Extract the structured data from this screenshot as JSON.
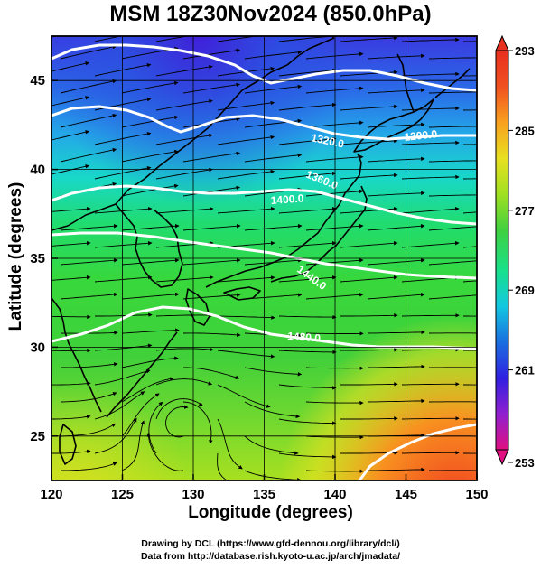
{
  "title": "MSM 18Z30Nov2024 (850.0hPa)",
  "x_axis": {
    "label": "Longitude (degrees)",
    "ticks": [
      "120",
      "125",
      "130",
      "135",
      "140",
      "145",
      "150"
    ],
    "range": [
      120,
      150
    ]
  },
  "y_axis": {
    "label": "Latitude  (degrees)",
    "ticks": [
      "25",
      "30",
      "35",
      "40",
      "45"
    ],
    "range": [
      22.5,
      47.5
    ]
  },
  "colorbar": {
    "ticks": [
      "293",
      "285",
      "277",
      "269",
      "261",
      "253"
    ],
    "range": [
      253,
      293
    ],
    "colors": [
      "#e01080",
      "#9020d0",
      "#3020e0",
      "#1a6fe0",
      "#12c8e0",
      "#18e08a",
      "#40d040",
      "#a0e020",
      "#e8e020",
      "#f8a020",
      "#f05020",
      "#e83020"
    ]
  },
  "contours": [
    {
      "label": "1200.0"
    },
    {
      "label": "1320.0"
    },
    {
      "label": "1360.0"
    },
    {
      "label": "1400.0"
    },
    {
      "label": "1440.0"
    },
    {
      "label": "1480.0"
    }
  ],
  "footer": {
    "line1": "Drawing by DCL (https://www.gfd-dennou.org/library/dcl/)",
    "line2": "Data from http://database.rish.kyoto-u.ac.jp/arch/jmadata/"
  }
}
